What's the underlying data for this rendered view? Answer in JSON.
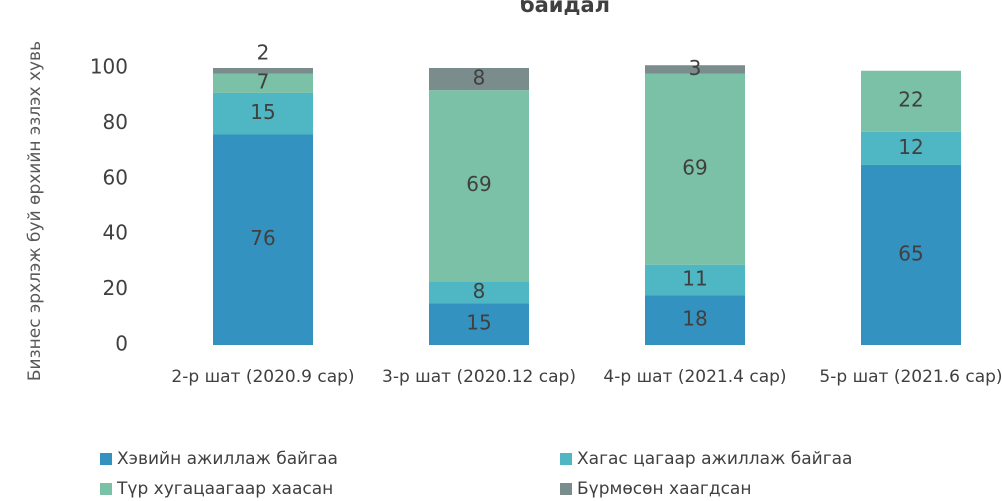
{
  "chart_data": {
    "type": "stacked_bar",
    "title": "байдал",
    "y_label": "Бизнес эрхлэж буй өрхийн эзлэх хувь",
    "categories": [
      "2-р шат (2020.9 сар)",
      "3-р шат (2020.12 сар)",
      "4-р шат (2021.4 сар)",
      "5-р шат (2021.6 сар)"
    ],
    "series": [
      {
        "name": "Хэвийн ажиллаж байгаа",
        "color": "#3392c0",
        "values": [
          76,
          15,
          18,
          65
        ]
      },
      {
        "name": "Хагас цагаар ажиллаж байгаа",
        "color": "#4fb6c3",
        "values": [
          15,
          8,
          11,
          12
        ]
      },
      {
        "name": "Түр хугацаагаар хаасан",
        "color": "#7bc1a7",
        "values": [
          7,
          69,
          69,
          22
        ]
      },
      {
        "name": "Бүрмөсөн хаагдсан",
        "color": "#7b8c8c",
        "values": [
          2,
          8,
          3,
          null
        ]
      }
    ],
    "ylim": [
      0,
      100
    ],
    "yticks": [
      0,
      20,
      40,
      60,
      80,
      100
    ],
    "grid": false
  }
}
